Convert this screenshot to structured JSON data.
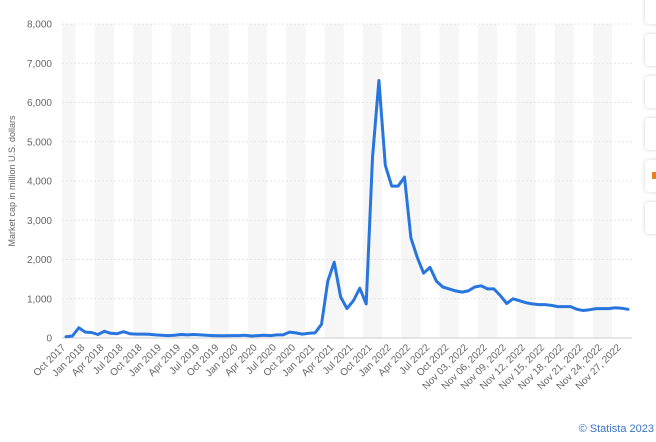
{
  "chart_data": {
    "type": "line",
    "y_label": "Market cap in million U.S. dollars",
    "credit": "© Statista 2023",
    "categories": [
      "Oct 2017",
      null,
      null,
      "Jan 2018",
      null,
      null,
      "Apr 2018",
      null,
      null,
      "Jul 2018",
      null,
      null,
      "Oct 2018",
      null,
      null,
      "Jan 2019",
      null,
      null,
      "Apr 2019",
      null,
      null,
      "Jul 2019",
      null,
      null,
      "Oct 2019",
      null,
      null,
      "Jan 2020",
      null,
      null,
      "Apr 2020",
      null,
      null,
      "Jul 2020",
      null,
      null,
      "Oct 2020",
      null,
      null,
      "Jan 2021",
      null,
      null,
      "Apr 2021",
      null,
      null,
      "Jul 2021",
      null,
      null,
      "Oct 2021",
      null,
      null,
      "Jan 2022",
      null,
      null,
      "Apr 2022",
      null,
      null,
      "Jul 2022",
      null,
      null,
      "Oct 2022",
      null,
      null,
      "Nov 03, 2022",
      null,
      null,
      "Nov 06, 2022",
      null,
      null,
      "Nov 09, 2022",
      null,
      null,
      "Nov 12, 2022",
      null,
      null,
      "Nov 15, 2022",
      null,
      null,
      "Nov 18, 2022",
      null,
      null,
      "Nov 21, 2022",
      null,
      null,
      "Nov 24, 2022",
      null,
      null,
      "Nov 27, 2022",
      null
    ],
    "series": [
      {
        "color": "#2876dd",
        "values": [
          30,
          50,
          260,
          150,
          140,
          90,
          170,
          120,
          110,
          160,
          110,
          100,
          100,
          95,
          80,
          70,
          60,
          70,
          90,
          80,
          90,
          80,
          70,
          60,
          55,
          55,
          60,
          60,
          70,
          50,
          60,
          70,
          60,
          80,
          80,
          150,
          130,
          100,
          120,
          130,
          350,
          1450,
          1930,
          1050,
          750,
          950,
          1270,
          870,
          4600,
          6560,
          4400,
          3870,
          3870,
          4100,
          2550,
          2050,
          1650,
          1800,
          1450,
          1300,
          1250,
          1200,
          1170,
          1200,
          1300,
          1330,
          1250,
          1250,
          1080,
          880,
          1000,
          950,
          900,
          870,
          850,
          850,
          830,
          800,
          800,
          800,
          730,
          700,
          720,
          750,
          750,
          750,
          770,
          760,
          730
        ]
      }
    ],
    "ylim": [
      0,
      8000
    ],
    "yticks": [
      0,
      {
        "value": 1000,
        "label": "1,000"
      },
      {
        "value": 2000,
        "label": "2,000"
      },
      {
        "value": 3000,
        "label": "3,000"
      },
      {
        "value": 4000,
        "label": "4,000"
      },
      {
        "value": 5000,
        "label": "5,000"
      },
      {
        "value": 6000,
        "label": "6,000"
      },
      {
        "value": 7000,
        "label": "7,000"
      },
      {
        "value": 8000,
        "label": "8,000"
      }
    ],
    "grid": true
  }
}
